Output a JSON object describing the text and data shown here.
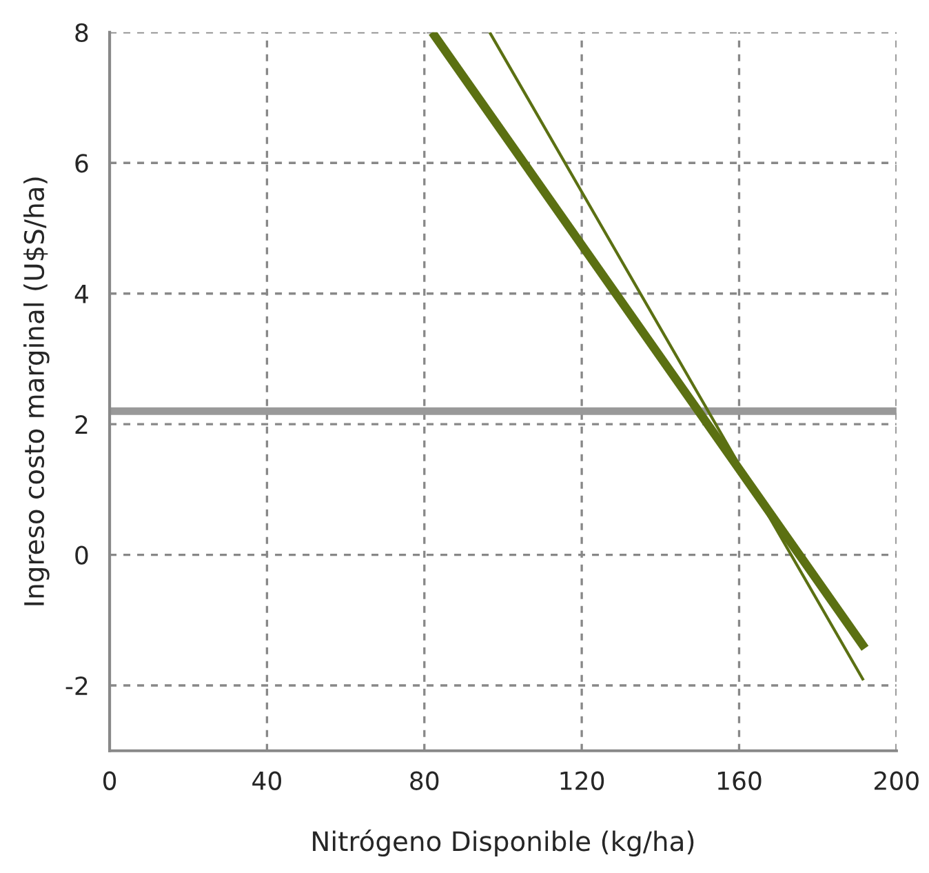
{
  "chart_data": {
    "type": "line",
    "xlabel": "Nitrógeno Disponible (kg/ha)",
    "ylabel": "Ingreso costo marginal (U$S/ha)",
    "series": [
      {
        "color": "#5b7012",
        "x": [
          82,
          192
        ],
        "values": [
          8,
          -1.43
        ]
      },
      {
        "color": "#5b7012",
        "x": [
          96.6,
          191.6
        ],
        "values": [
          8,
          -1.92
        ]
      }
    ],
    "xlim": [
      0,
      200
    ],
    "xticks": [
      0,
      40,
      80,
      120,
      160,
      200
    ],
    "ylim": [
      -3,
      8
    ],
    "yticks": [
      -2,
      0,
      2,
      4,
      6,
      8
    ],
    "ref_lines": [
      {
        "axis": "y",
        "value": 2.2,
        "color": "#999999"
      }
    ],
    "grid": true,
    "legend": false,
    "marker": "none",
    "line_style": "solid"
  }
}
